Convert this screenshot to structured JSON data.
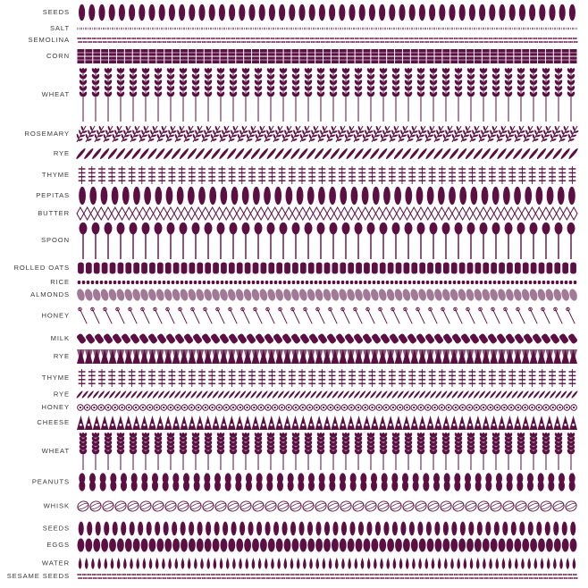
{
  "colors": {
    "primary": "#5b0f42",
    "light": "#a27a97",
    "label": "#3a3a3a"
  },
  "rows": [
    {
      "label": "SEEDS",
      "pattern": "leaf"
    },
    {
      "label": "SALT",
      "pattern": "dots-fine"
    },
    {
      "label": "SEMOLINA",
      "pattern": "dots"
    },
    {
      "label": "CORN",
      "pattern": "grid"
    },
    {
      "label": "WHEAT",
      "pattern": "wheat"
    },
    {
      "label": "ROSEMARY",
      "pattern": "sprig"
    },
    {
      "label": "RYE",
      "pattern": "leaf-tilt"
    },
    {
      "label": "THYME",
      "pattern": "thyme"
    },
    {
      "label": "PEPITAS",
      "pattern": "leaf"
    },
    {
      "label": "BUTTER",
      "pattern": "diamond"
    },
    {
      "label": "SPOON",
      "pattern": "spoon"
    },
    {
      "label": "ROLLED OATS",
      "pattern": "oval"
    },
    {
      "label": "RICE",
      "pattern": "rice"
    },
    {
      "label": "ALMONDS",
      "pattern": "almond"
    },
    {
      "label": "HONEY",
      "pattern": "dipper"
    },
    {
      "label": "MILK",
      "pattern": "bottle"
    },
    {
      "label": "RYE",
      "pattern": "zigzag"
    },
    {
      "label": "THYME",
      "pattern": "thyme"
    },
    {
      "label": "RYE",
      "pattern": "leaf-tilt"
    },
    {
      "label": "HONEY",
      "pattern": "flower"
    },
    {
      "label": "CHEESE",
      "pattern": "triangle"
    },
    {
      "label": "WHEAT",
      "pattern": "wheat"
    },
    {
      "label": "PEANUTS",
      "pattern": "peanut"
    },
    {
      "label": "WHISK",
      "pattern": "whisk"
    },
    {
      "label": "SEEDS",
      "pattern": "leaf"
    },
    {
      "label": "EGGS",
      "pattern": "egg"
    },
    {
      "label": "WATER",
      "pattern": "drop"
    },
    {
      "label": "SESAME SEEDS",
      "pattern": "dots"
    }
  ]
}
